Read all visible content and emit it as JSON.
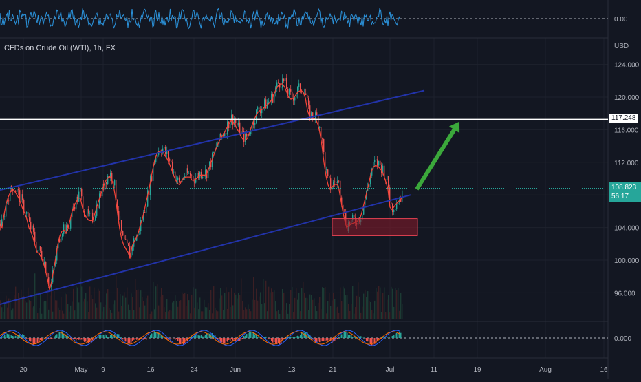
{
  "chart_data": [
    {
      "type": "line",
      "title": "CFDs on Crude Oil (WTI), 1h, FX",
      "currency": "USD",
      "y_ticks": [
        96,
        100,
        104,
        108,
        112,
        116,
        120,
        124
      ],
      "y_tick_labels": [
        "96.000",
        "100.000",
        "104.000",
        "108.000",
        "112.000",
        "116.000",
        "120.000",
        "124.000"
      ],
      "ylim": [
        93.5,
        126
      ],
      "x_ticks": [
        "20",
        "May",
        "9",
        "16",
        "24",
        "Jun",
        "13",
        "21",
        "Jul",
        "11",
        "19",
        "Aug",
        "16"
      ],
      "price_path": [
        [
          0,
          104.5
        ],
        [
          3,
          104.3
        ],
        [
          8,
          107.0
        ],
        [
          13,
          108.3
        ],
        [
          18,
          109.1
        ],
        [
          22,
          108.7
        ],
        [
          28,
          107.8
        ],
        [
          33,
          106.6
        ],
        [
          38,
          105.7
        ],
        [
          42,
          104.3
        ],
        [
          46,
          103.6
        ],
        [
          50,
          102.5
        ],
        [
          53,
          101.3
        ],
        [
          57,
          101.1
        ],
        [
          61,
          100.5
        ],
        [
          65,
          99.5
        ],
        [
          69,
          98.0
        ],
        [
          71,
          96.8
        ],
        [
          73,
          96.6
        ],
        [
          76,
          98.2
        ],
        [
          80,
          100.0
        ],
        [
          84,
          102.2
        ],
        [
          88,
          103.6
        ],
        [
          92,
          104.1
        ],
        [
          96,
          103.6
        ],
        [
          100,
          104.4
        ],
        [
          104,
          106.1
        ],
        [
          108,
          107.0
        ],
        [
          112,
          107.6
        ],
        [
          116,
          108.3
        ],
        [
          119,
          107.0
        ],
        [
          122,
          106.1
        ],
        [
          126,
          105.5
        ],
        [
          130,
          105.1
        ],
        [
          135,
          105.2
        ],
        [
          140,
          106.6
        ],
        [
          145,
          108.0
        ],
        [
          149,
          108.9
        ],
        [
          152,
          109.8
        ],
        [
          155,
          110.2
        ],
        [
          159,
          110.6
        ],
        [
          163,
          110.2
        ],
        [
          166,
          109.1
        ],
        [
          169,
          107.3
        ],
        [
          172,
          105.3
        ],
        [
          175,
          103.6
        ],
        [
          178,
          102.5
        ],
        [
          182,
          101.8
        ],
        [
          186,
          101.3
        ],
        [
          189,
          100.5
        ],
        [
          192,
          102.0
        ],
        [
          196,
          102.7
        ],
        [
          200,
          103.3
        ],
        [
          204,
          104.6
        ],
        [
          208,
          105.6
        ],
        [
          212,
          107.3
        ],
        [
          216,
          108.7
        ],
        [
          220,
          110.5
        ],
        [
          224,
          112.3
        ],
        [
          228,
          113.3
        ],
        [
          232,
          113.7
        ],
        [
          236,
          113.7
        ],
        [
          240,
          113.1
        ],
        [
          244,
          112.6
        ],
        [
          248,
          111.8
        ],
        [
          252,
          110.8
        ],
        [
          256,
          110.0
        ],
        [
          260,
          109.4
        ],
        [
          264,
          110.0
        ],
        [
          268,
          110.5
        ],
        [
          272,
          110.5
        ],
        [
          276,
          110.5
        ],
        [
          280,
          110.0
        ],
        [
          284,
          110.2
        ],
        [
          288,
          110.5
        ],
        [
          292,
          110.8
        ],
        [
          296,
          110.7
        ],
        [
          300,
          110.8
        ],
        [
          304,
          111.6
        ],
        [
          308,
          112.5
        ],
        [
          312,
          113.5
        ],
        [
          316,
          114.4
        ],
        [
          320,
          115.1
        ],
        [
          324,
          115.6
        ],
        [
          328,
          116.2
        ],
        [
          332,
          116.9
        ],
        [
          336,
          117.4
        ],
        [
          340,
          117.2
        ],
        [
          344,
          116.5
        ],
        [
          348,
          115.9
        ],
        [
          352,
          115.2
        ],
        [
          356,
          114.9
        ],
        [
          360,
          115.3
        ],
        [
          364,
          116.3
        ],
        [
          368,
          117.2
        ],
        [
          372,
          118.0
        ],
        [
          376,
          118.6
        ],
        [
          380,
          118.7
        ],
        [
          384,
          119.0
        ],
        [
          388,
          119.3
        ],
        [
          392,
          119.6
        ],
        [
          396,
          120.1
        ],
        [
          400,
          121.0
        ],
        [
          404,
          121.7
        ],
        [
          408,
          121.9
        ],
        [
          412,
          121.9
        ],
        [
          416,
          121.1
        ],
        [
          420,
          120.2
        ],
        [
          424,
          120.0
        ],
        [
          428,
          120.3
        ],
        [
          432,
          120.8
        ],
        [
          436,
          121.1
        ],
        [
          440,
          121.1
        ],
        [
          444,
          120.2
        ],
        [
          448,
          118.2
        ],
        [
          452,
          117.7
        ],
        [
          456,
          117.7
        ],
        [
          460,
          117.5
        ],
        [
          464,
          116.5
        ],
        [
          468,
          114.4
        ],
        [
          472,
          111.6
        ],
        [
          476,
          109.7
        ],
        [
          480,
          109.0
        ],
        [
          484,
          109.4
        ],
        [
          488,
          109.7
        ],
        [
          492,
          109.4
        ],
        [
          496,
          107.5
        ],
        [
          500,
          105.5
        ],
        [
          504,
          104.3
        ],
        [
          508,
          104.6
        ],
        [
          512,
          104.8
        ],
        [
          516,
          104.9
        ],
        [
          520,
          105.1
        ],
        [
          524,
          105.5
        ],
        [
          528,
          106.8
        ],
        [
          532,
          108.2
        ],
        [
          536,
          109.6
        ],
        [
          540,
          111.2
        ],
        [
          544,
          111.9
        ],
        [
          548,
          111.9
        ],
        [
          552,
          111.6
        ],
        [
          556,
          111.2
        ],
        [
          560,
          110.2
        ],
        [
          564,
          109.0
        ],
        [
          567,
          106.8
        ],
        [
          570,
          106.5
        ],
        [
          574,
          107.0
        ],
        [
          578,
          107.4
        ],
        [
          582,
          107.7
        ],
        [
          585,
          108.0
        ]
      ],
      "channel_upper": [
        [
          0,
          108.6
        ],
        [
          617,
          120.8
        ]
      ],
      "channel_lower": [
        [
          0,
          94.6
        ],
        [
          597,
          108.0
        ]
      ],
      "horizontal_level": 117.248,
      "support_zone": {
        "x": [
          483,
          607
        ],
        "y": [
          103.0,
          105.1
        ]
      },
      "arrow": {
        "from": [
          606,
          108.7
        ],
        "to": [
          668,
          117.0
        ]
      },
      "last_price": "108.823",
      "countdown": "56:17",
      "level_label": "117.248"
    },
    {
      "type": "line",
      "name": "top-oscillator",
      "zero_label": "0.00"
    },
    {
      "type": "line",
      "name": "bottom-oscillator",
      "zero_label": "0.000"
    }
  ],
  "colors": {
    "background": "#131722",
    "candle_up": "#26a69a",
    "candle_down": "#ef5350",
    "ma_line": "#f44336",
    "channel": "#2233aa",
    "level": "#ffffff",
    "arrow": "#3ba83b",
    "zone": "#8b1a2a",
    "top_osc": "#2a8fd6",
    "grid": "#1e222d"
  }
}
